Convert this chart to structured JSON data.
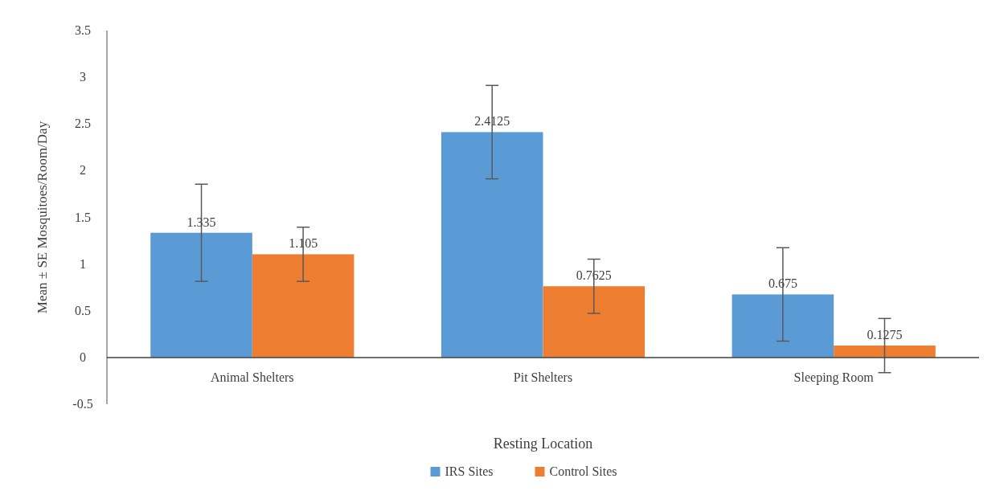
{
  "chart_data": {
    "type": "bar",
    "xlabel": "Resting Location",
    "ylabel": "Mean ± SE Mosquitoes/Room/Day",
    "categories": [
      "Animal Shelters",
      "Pit Shelters",
      "Sleeping Room"
    ],
    "series": [
      {
        "name": "IRS Sites",
        "color": "#5b9bd5",
        "values": [
          1.335,
          2.4125,
          0.675
        ],
        "errors": [
          0.52,
          0.5,
          0.5
        ]
      },
      {
        "name": "Control Sites",
        "color": "#ed7d31",
        "values": [
          1.105,
          0.7625,
          0.1275
        ],
        "errors": [
          0.29,
          0.29,
          0.29
        ]
      }
    ],
    "ylim": [
      -0.5,
      3.5
    ],
    "yticks": [
      -0.5,
      0,
      0.5,
      1,
      1.5,
      2,
      2.5,
      3,
      3.5
    ],
    "data_labels": true,
    "grid": false,
    "legend": "bottom"
  }
}
